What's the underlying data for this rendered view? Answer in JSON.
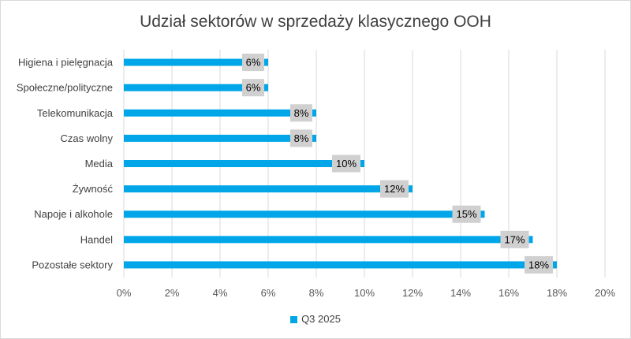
{
  "chart_data": {
    "type": "bar",
    "orientation": "horizontal",
    "title": "Udział sektorów w sprzedaży klasycznego OOH",
    "categories": [
      "Higiena i pielęgnacja",
      "Społeczne/polityczne",
      "Telekomunikacja",
      "Czas wolny",
      "Media",
      "Żywność",
      "Napoje i alkohole",
      "Handel",
      "Pozostałe sektory"
    ],
    "series": [
      {
        "name": "Q3 2025",
        "values": [
          6,
          6,
          8,
          8,
          10,
          12,
          15,
          17,
          18
        ],
        "labels": [
          "6%",
          "6%",
          "8%",
          "8%",
          "10%",
          "12%",
          "15%",
          "17%",
          "18%"
        ]
      }
    ],
    "xlim": [
      0,
      20
    ],
    "xticks": [
      "0%",
      "2%",
      "4%",
      "6%",
      "8%",
      "10%",
      "12%",
      "14%",
      "16%",
      "18%",
      "20%"
    ],
    "xticks_values": [
      0,
      2,
      4,
      6,
      8,
      10,
      12,
      14,
      16,
      18,
      20
    ],
    "grid": true,
    "legend": "bottom",
    "colors": {
      "bar": "#00a6e8",
      "label_box": "#d0d0d0",
      "grid": "#d9d9d9"
    }
  }
}
